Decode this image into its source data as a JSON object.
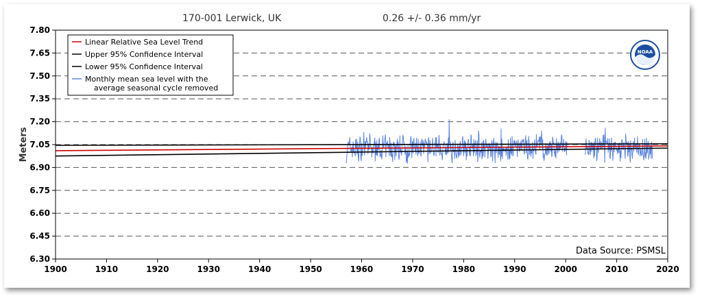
{
  "chart_data": {
    "type": "line",
    "station": "170-001 Lerwick, UK",
    "trend_text": "0.26 +/-  0.36 mm/yr",
    "ylabel": "Meters",
    "xlim": [
      1900,
      2020
    ],
    "ylim": [
      6.3,
      7.8
    ],
    "xticks": [
      1900,
      1910,
      1920,
      1930,
      1940,
      1950,
      1960,
      1970,
      1980,
      1990,
      2000,
      2010,
      2020
    ],
    "yticks": [
      "6.30",
      "6.45",
      "6.60",
      "6.75",
      "6.90",
      "7.05",
      "7.20",
      "7.35",
      "7.50",
      "7.65",
      "7.80"
    ],
    "grid": "horizontal dashed",
    "legend_position": "top-left",
    "data_source": "Data Source: PSMSL",
    "series": [
      {
        "name": "Linear Relative Sea Level Trend",
        "color": "#cc0000",
        "x": [
          1900,
          2020
        ],
        "y": [
          7.01,
          7.041
        ]
      },
      {
        "name": "Upper 95% Confidence Interval",
        "color": "#000000",
        "x": [
          1900,
          2020
        ],
        "y": [
          7.045,
          7.055
        ]
      },
      {
        "name": "Lower 95% Confidence Interval",
        "color": "#000000",
        "x": [
          1900,
          2020
        ],
        "y": [
          6.975,
          7.027
        ]
      },
      {
        "name": "Monthly mean sea level with the average seasonal cycle removed",
        "color": "#5b84e0",
        "range": [
          1957,
          2017
        ],
        "baseline": 7.025,
        "spread": 0.085,
        "gaps": [
          [
            2000.3,
            2003.8
          ]
        ]
      }
    ]
  },
  "legend": [
    {
      "label": "Linear Relative Sea Level Trend",
      "color": "#cc0000"
    },
    {
      "label": "Upper 95% Confidence Interval",
      "color": "#000000"
    },
    {
      "label": "Lower 95% Confidence Interval",
      "color": "#000000"
    },
    {
      "label": "Monthly mean sea level with the",
      "label2": "average seasonal cycle removed",
      "color": "#5b84e0"
    }
  ],
  "logo": {
    "text": "NOAA",
    "color": "#1a4ea0"
  }
}
